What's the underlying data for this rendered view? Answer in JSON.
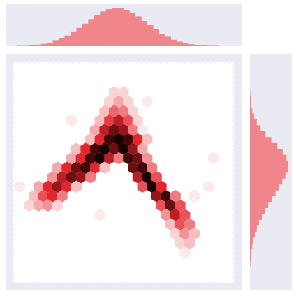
{
  "chart_data": {
    "type": "hexbin",
    "xlim": [
      0,
      100
    ],
    "ylim": [
      0,
      100
    ],
    "hist_lim": [
      0,
      110
    ],
    "background": "#eaeaf2",
    "hist_color": "#f0858c",
    "cmap": [
      "#ffffff",
      "#e3262e",
      "#1a0000"
    ],
    "hex": {
      "x": [
        46,
        50,
        44,
        48,
        52,
        42,
        46,
        50,
        54,
        40,
        44,
        48,
        52,
        56,
        38,
        42,
        46,
        50,
        54,
        58,
        36,
        40,
        44,
        48,
        52,
        56,
        60,
        30,
        34,
        38,
        42,
        46,
        50,
        54,
        58,
        28,
        32,
        36,
        40,
        44,
        48,
        52,
        56,
        60,
        22,
        26,
        30,
        34,
        38,
        42,
        54,
        58,
        62,
        20,
        24,
        28,
        32,
        36,
        56,
        60,
        64,
        14,
        18,
        22,
        26,
        30,
        58,
        62,
        66,
        12,
        16,
        20,
        24,
        64,
        68,
        72,
        10,
        14,
        18,
        22,
        66,
        70,
        74,
        68,
        72,
        76,
        70,
        74,
        78,
        72,
        76,
        80,
        74,
        78,
        76,
        28,
        60,
        80,
        86,
        6,
        40,
        88
      ],
      "y": [
        84,
        84,
        80,
        80,
        80,
        76,
        76,
        76,
        76,
        72,
        72,
        72,
        72,
        72,
        68,
        68,
        68,
        68,
        68,
        68,
        64,
        64,
        64,
        64,
        64,
        64,
        64,
        60,
        60,
        60,
        60,
        60,
        60,
        60,
        60,
        56,
        56,
        56,
        56,
        56,
        56,
        56,
        56,
        56,
        52,
        52,
        52,
        52,
        52,
        52,
        52,
        52,
        52,
        48,
        48,
        48,
        48,
        48,
        48,
        48,
        48,
        44,
        44,
        44,
        44,
        44,
        44,
        44,
        44,
        40,
        40,
        40,
        40,
        40,
        40,
        40,
        36,
        36,
        36,
        36,
        36,
        36,
        36,
        32,
        32,
        32,
        28,
        28,
        28,
        24,
        24,
        24,
        20,
        20,
        16,
        72,
        80,
        40,
        44,
        44,
        32,
        56
      ],
      "values": [
        2,
        2,
        2,
        4,
        2,
        3,
        7,
        6,
        2,
        3,
        9,
        12,
        8,
        2,
        4,
        12,
        16,
        14,
        6,
        1,
        3,
        10,
        18,
        20,
        18,
        10,
        3,
        3,
        10,
        18,
        20,
        16,
        20,
        14,
        4,
        4,
        10,
        18,
        20,
        12,
        6,
        18,
        16,
        5,
        4,
        10,
        16,
        18,
        10,
        3,
        16,
        18,
        6,
        5,
        12,
        16,
        14,
        6,
        12,
        20,
        8,
        4,
        10,
        14,
        10,
        3,
        8,
        20,
        10,
        3,
        8,
        10,
        6,
        14,
        18,
        6,
        2,
        4,
        5,
        2,
        8,
        16,
        8,
        5,
        12,
        8,
        3,
        8,
        6,
        2,
        5,
        3,
        2,
        3,
        1,
        1,
        1,
        1,
        1,
        1,
        1,
        1
      ]
    },
    "x_hist": {
      "bins": [
        5,
        7.5,
        10,
        12.5,
        15,
        17.5,
        20,
        22.5,
        25,
        27.5,
        30,
        32.5,
        35,
        37.5,
        40,
        42.5,
        45,
        47.5,
        50,
        52.5,
        55,
        57.5,
        60,
        62.5,
        65,
        67.5,
        70,
        72.5,
        75,
        77.5,
        80,
        82.5,
        85,
        87.5,
        90
      ],
      "counts": [
        1,
        1,
        2,
        4,
        6,
        9,
        14,
        20,
        28,
        37,
        48,
        59,
        71,
        82,
        91,
        97,
        100,
        99,
        95,
        87,
        78,
        66,
        55,
        44,
        33,
        25,
        17,
        12,
        8,
        5,
        3,
        2,
        1,
        1
      ]
    },
    "y_hist": {
      "bins": [
        10,
        12.5,
        15,
        17.5,
        20,
        22.5,
        25,
        27.5,
        30,
        32.5,
        35,
        37.5,
        40,
        42.5,
        45,
        47.5,
        50,
        52.5,
        55,
        57.5,
        60,
        62.5,
        65,
        67.5,
        70,
        72.5,
        75,
        77.5,
        80,
        82.5,
        85
      ],
      "counts": [
        1,
        2,
        4,
        6,
        9,
        13,
        18,
        24,
        31,
        39,
        48,
        57,
        67,
        76,
        85,
        93,
        99,
        100,
        96,
        86,
        72,
        56,
        41,
        28,
        18,
        11,
        6,
        3,
        2,
        1
      ]
    }
  }
}
